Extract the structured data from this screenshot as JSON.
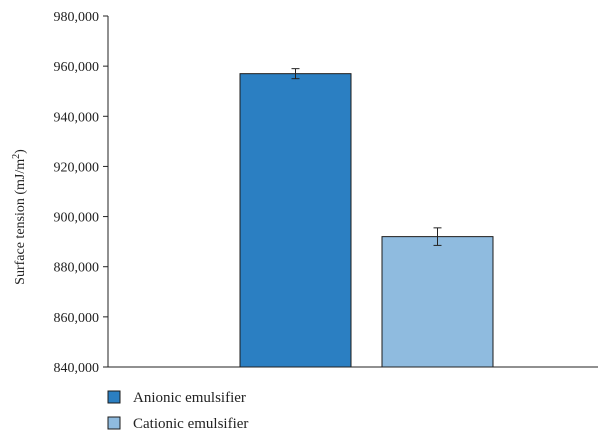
{
  "chart_data": {
    "type": "bar",
    "title": "",
    "xlabel": "",
    "ylabel": "Surface tension (mJ/m",
    "ylabel_superscript": "2",
    "ylabel_suffix": ")",
    "ylim": [
      840000,
      980000
    ],
    "yticks": [
      840000,
      860000,
      880000,
      900000,
      920000,
      940000,
      960000,
      980000
    ],
    "ytick_labels": [
      "840,000",
      "860,000",
      "880,000",
      "900,000",
      "920,000",
      "940,000",
      "960,000",
      "980,000"
    ],
    "grid": false,
    "legend_position": "bottom-left",
    "series": [
      {
        "name": "Anionic emulsifier",
        "value": 957000,
        "error": 2000,
        "color": "#2b7fc2"
      },
      {
        "name": "Cationic emulsifier",
        "value": 892000,
        "error": 3500,
        "color": "#8fbbdf"
      }
    ]
  }
}
